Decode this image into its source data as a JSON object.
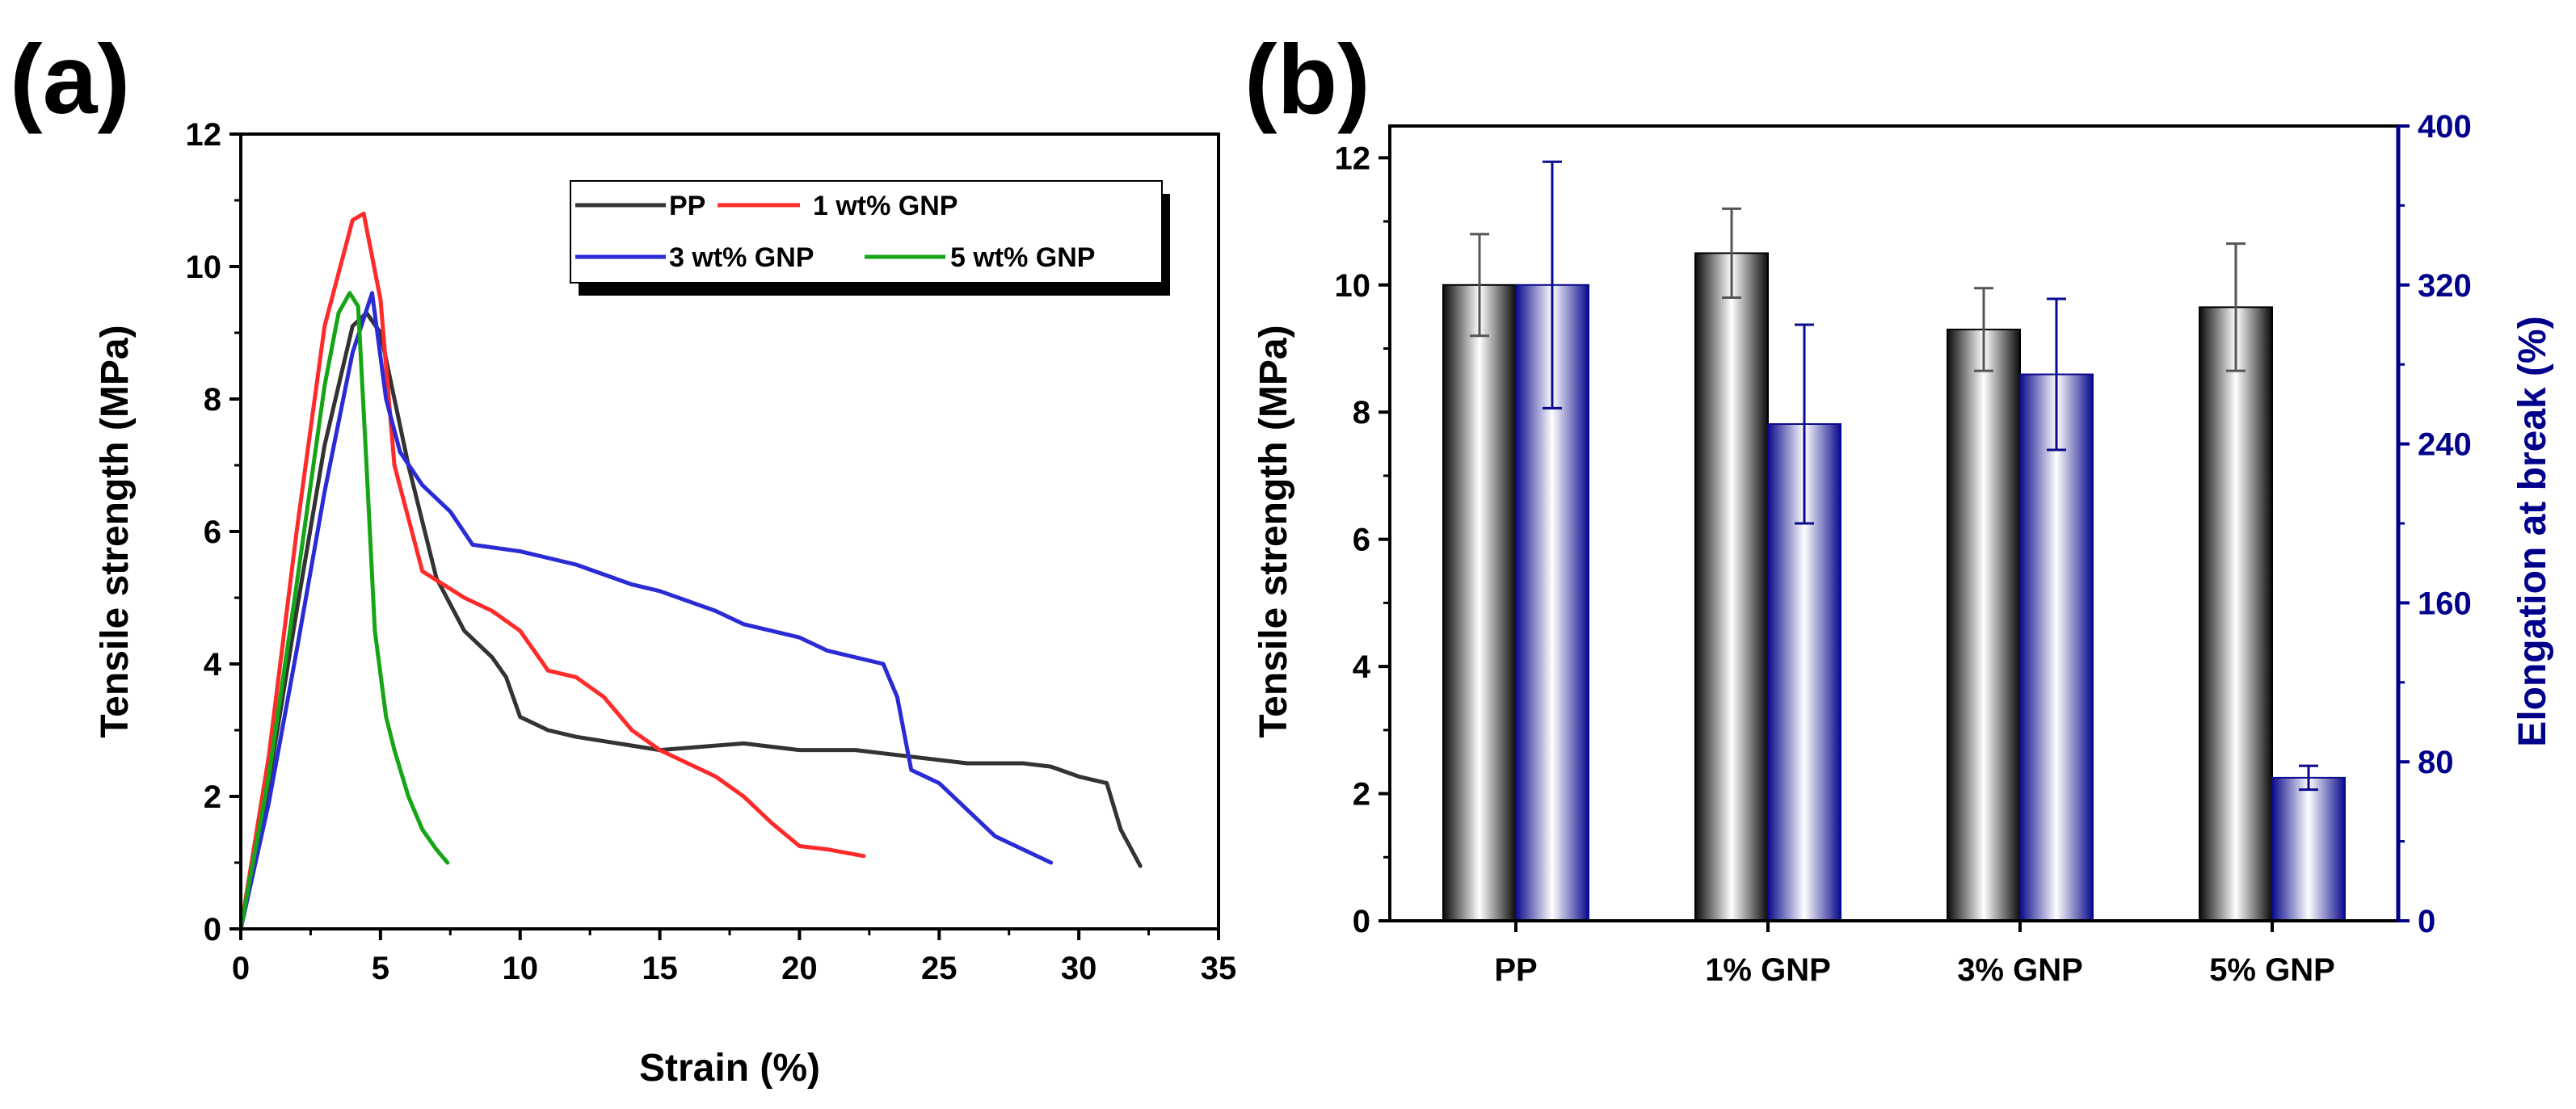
{
  "chart_data": [
    {
      "panel_label": "(a)",
      "type": "line",
      "title": "",
      "xlabel": "Strain (%)",
      "ylabel": "Tensile strength (MPa)",
      "xlim": [
        0,
        35
      ],
      "ylim": [
        0,
        12
      ],
      "xticks": [
        0,
        5,
        10,
        15,
        20,
        25,
        30,
        35
      ],
      "yticks": [
        0,
        2,
        4,
        6,
        8,
        10,
        12
      ],
      "grid": false,
      "legend": "top-right",
      "series": [
        {
          "name": "PP",
          "color": "#333333",
          "x": [
            0,
            1,
            2,
            3,
            4,
            4.5,
            5,
            6,
            7,
            8,
            9,
            9.5,
            10,
            11,
            12,
            15,
            18,
            20,
            22,
            24,
            26,
            28,
            29,
            30,
            31,
            31.5,
            32.2
          ],
          "y": [
            0,
            2.2,
            4.8,
            7.3,
            9.1,
            9.3,
            9.0,
            7.0,
            5.3,
            4.5,
            4.1,
            3.8,
            3.2,
            3.0,
            2.9,
            2.7,
            2.8,
            2.7,
            2.7,
            2.6,
            2.5,
            2.5,
            2.45,
            2.3,
            2.2,
            1.5,
            0.95
          ]
        },
        {
          "name": "1 wt% GNP",
          "color": "#ff2a2a",
          "x": [
            0,
            1,
            2,
            3,
            4,
            4.4,
            5,
            5.5,
            6.5,
            8,
            9,
            10,
            11,
            12,
            13,
            14,
            15,
            17,
            18,
            19,
            20,
            21,
            22.3
          ],
          "y": [
            0,
            2.6,
            6.0,
            9.1,
            10.7,
            10.8,
            9.5,
            7.0,
            5.4,
            5.0,
            4.8,
            4.5,
            3.9,
            3.8,
            3.5,
            3.0,
            2.7,
            2.3,
            2.0,
            1.6,
            1.25,
            1.2,
            1.1
          ]
        },
        {
          "name": "3 wt% GNP",
          "color": "#2b2bd6",
          "x": [
            0,
            1,
            2,
            3,
            4,
            4.7,
            5.2,
            5.7,
            6.5,
            7.5,
            8.3,
            10,
            12,
            14,
            15,
            17,
            18,
            20,
            21,
            22,
            23,
            23.5,
            24,
            25,
            26,
            27,
            28,
            29
          ],
          "y": [
            0,
            1.9,
            4.2,
            6.6,
            8.7,
            9.6,
            8.0,
            7.2,
            6.7,
            6.3,
            5.8,
            5.7,
            5.5,
            5.2,
            5.1,
            4.8,
            4.6,
            4.4,
            4.2,
            4.1,
            4.0,
            3.5,
            2.4,
            2.2,
            1.8,
            1.4,
            1.2,
            1.0
          ]
        },
        {
          "name": "5 wt% GNP",
          "color": "#16a516",
          "x": [
            0,
            1,
            2,
            3,
            3.5,
            3.9,
            4.2,
            4.5,
            4.8,
            5.2,
            5.5,
            6.0,
            6.5,
            7.0,
            7.4
          ],
          "y": [
            0,
            2.3,
            5.2,
            8.2,
            9.3,
            9.6,
            9.4,
            7.0,
            4.5,
            3.2,
            2.7,
            2.0,
            1.5,
            1.2,
            1.0
          ]
        }
      ]
    },
    {
      "panel_label": "(b)",
      "type": "bar",
      "title": "",
      "xlabel": "",
      "ylabel": "Tensile strength (MPa)",
      "y2label": "Elongation at break (%)",
      "categories": [
        "PP",
        "1% GNP",
        "3% GNP",
        "5% GNP"
      ],
      "ylim": [
        0,
        12.5
      ],
      "y2lim": [
        0,
        400
      ],
      "yticks": [
        0,
        2,
        4,
        6,
        8,
        10,
        12
      ],
      "y2ticks": [
        0,
        80,
        160,
        240,
        320,
        400
      ],
      "y2_color": "#00008b",
      "series": [
        {
          "name": "Tensile strength",
          "axis": "left",
          "color": "#111111",
          "values": [
            10.0,
            10.5,
            9.3,
            9.65
          ],
          "errors": [
            0.8,
            0.7,
            0.65,
            1.0
          ]
        },
        {
          "name": "Elongation at break",
          "axis": "right",
          "color": "#0a0a8c",
          "values": [
            320,
            250,
            275,
            72
          ],
          "errors": [
            62,
            50,
            38,
            6
          ]
        }
      ]
    }
  ]
}
